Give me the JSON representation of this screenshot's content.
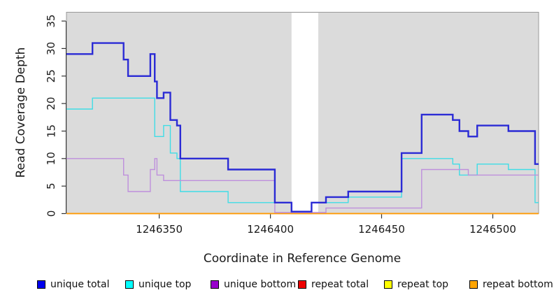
{
  "chart_data": {
    "type": "line",
    "subtype": "step-coverage",
    "title": "",
    "xlabel": "Coordinate in Reference Genome",
    "ylabel": "Read Coverage Depth",
    "xlim": [
      1246308.3,
      1246520.6
    ],
    "ylim": [
      0,
      36.6
    ],
    "plot_background": "#DBDBDB",
    "border_color": "#999999",
    "axis_color": "#333333",
    "masked_region": {
      "x_start": 1246409.5,
      "x_end": 1246421.5,
      "color": "#FFFFFF"
    },
    "x_ticks": {
      "values": [
        1246350,
        1246400,
        1246450,
        1246500
      ],
      "labels": [
        "1246350",
        "1246400",
        "1246450",
        "1246500"
      ]
    },
    "y_ticks": {
      "values": [
        0,
        5,
        10,
        15,
        20,
        25,
        30,
        35
      ],
      "labels": [
        "0",
        "5",
        "10",
        "15",
        "20",
        "25",
        "30",
        "35"
      ]
    },
    "series": [
      {
        "id": "unique-top",
        "name": "unique top",
        "color": "#3FDDE6",
        "width": 1.4,
        "zero_lift": 0,
        "points": [
          [
            1246308.3,
            19
          ],
          [
            1246320,
            21
          ],
          [
            1246348,
            14
          ],
          [
            1246352,
            16
          ],
          [
            1246355,
            11
          ],
          [
            1246358,
            10
          ],
          [
            1246359.5,
            4
          ],
          [
            1246381,
            2
          ],
          [
            1246409.5,
            0
          ],
          [
            1246418.5,
            2
          ],
          [
            1246435,
            3
          ],
          [
            1246459,
            10
          ],
          [
            1246482,
            9
          ],
          [
            1246485,
            7
          ],
          [
            1246493,
            9
          ],
          [
            1246507,
            8
          ],
          [
            1246519,
            2
          ]
        ]
      },
      {
        "id": "repeat-total",
        "name": "repeat total",
        "color": "#DD0000",
        "width": 1.2,
        "zero_lift": 0,
        "points": [
          [
            1246308.3,
            0
          ]
        ]
      },
      {
        "id": "repeat-top",
        "name": "repeat top",
        "color": "#EEEE00",
        "width": 1.2,
        "zero_lift": 0,
        "points": [
          [
            1246308.3,
            0
          ]
        ]
      },
      {
        "id": "repeat-bottom",
        "name": "repeat bottom",
        "color": "#FF9900",
        "width": 1.7,
        "zero_lift": 0,
        "points": [
          [
            1246308.3,
            0
          ]
        ]
      },
      {
        "id": "unique-bottom",
        "name": "unique bottom",
        "color": "#BE8FDC",
        "width": 1.4,
        "zero_lift": 1.5,
        "points": [
          [
            1246308.3,
            10
          ],
          [
            1246334,
            7
          ],
          [
            1246336,
            4
          ],
          [
            1246346,
            8
          ],
          [
            1246348,
            10
          ],
          [
            1246349,
            7
          ],
          [
            1246352,
            6
          ],
          [
            1246402,
            0
          ],
          [
            1246425,
            1
          ],
          [
            1246468,
            8
          ],
          [
            1246489,
            7
          ]
        ]
      },
      {
        "id": "unique-total",
        "name": "unique total",
        "color": "#2B2BD5",
        "width": 2.4,
        "zero_lift": 2.8,
        "points": [
          [
            1246308.3,
            29
          ],
          [
            1246320,
            31
          ],
          [
            1246334,
            28
          ],
          [
            1246336,
            25
          ],
          [
            1246346,
            29
          ],
          [
            1246348,
            24
          ],
          [
            1246349,
            21
          ],
          [
            1246352,
            22
          ],
          [
            1246355,
            17
          ],
          [
            1246358,
            16
          ],
          [
            1246359.5,
            10
          ],
          [
            1246381,
            8
          ],
          [
            1246402,
            2
          ],
          [
            1246409.5,
            0
          ],
          [
            1246418.5,
            2
          ],
          [
            1246425,
            3
          ],
          [
            1246435,
            4
          ],
          [
            1246459,
            11
          ],
          [
            1246468,
            18
          ],
          [
            1246482,
            17
          ],
          [
            1246485,
            15
          ],
          [
            1246489,
            14
          ],
          [
            1246493,
            16
          ],
          [
            1246507,
            15
          ],
          [
            1246519,
            9
          ]
        ]
      }
    ],
    "legend": [
      {
        "label": "unique total",
        "swatch": "#0000EE"
      },
      {
        "label": "unique top",
        "swatch": "#00FFFF"
      },
      {
        "label": "unique bottom",
        "swatch": "#9900CC"
      },
      {
        "label": "repeat total",
        "swatch": "#EE0000"
      },
      {
        "label": "repeat top",
        "swatch": "#FFFF00"
      },
      {
        "label": "repeat bottom",
        "swatch": "#FFA500"
      }
    ],
    "legend_position": "bottom"
  }
}
